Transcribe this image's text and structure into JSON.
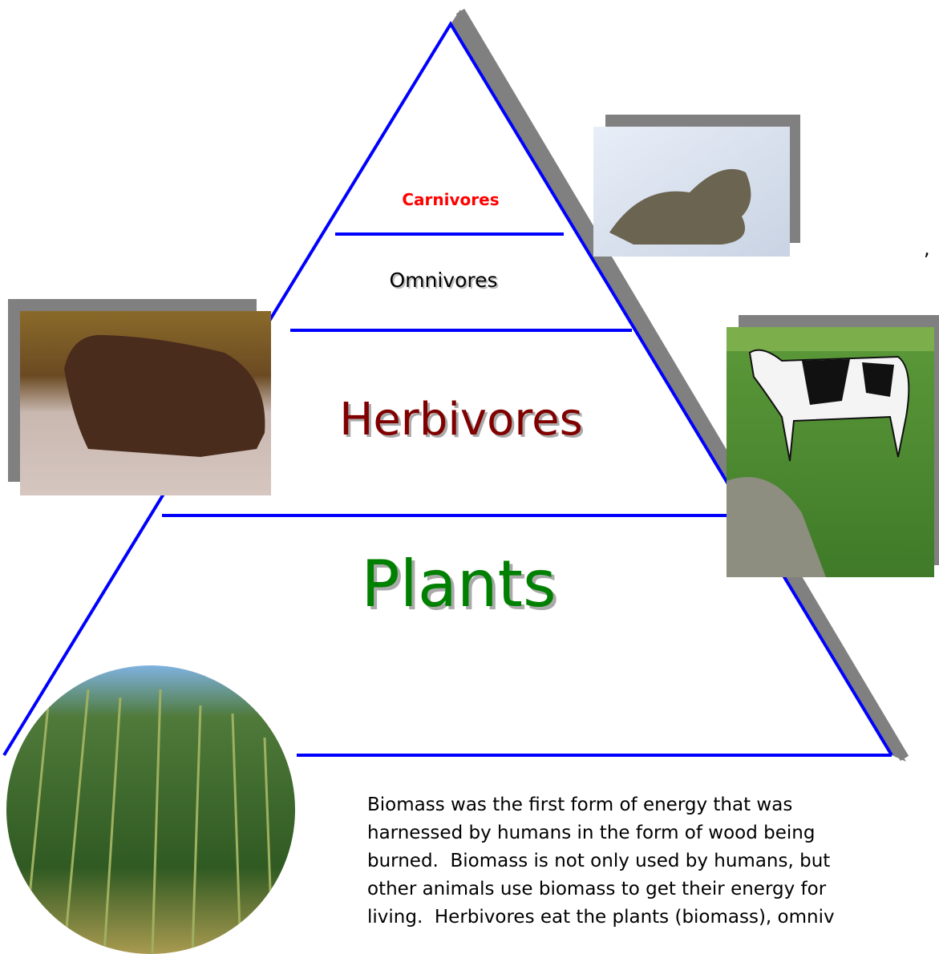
{
  "pyramid": {
    "levels": [
      "Carnivores",
      "Omnivores",
      "Herbivores",
      "Plants"
    ]
  },
  "stray_mark": ",",
  "paragraph": {
    "lines": [
      "Biomass was the first form of energy that was",
      "harnessed by humans in the form of wood being",
      "burned.  Biomass is not only used by humans, but",
      "other animals use biomass to get their energy for",
      "living.  Herbivores eat the plants (biomass), omniv"
    ]
  }
}
